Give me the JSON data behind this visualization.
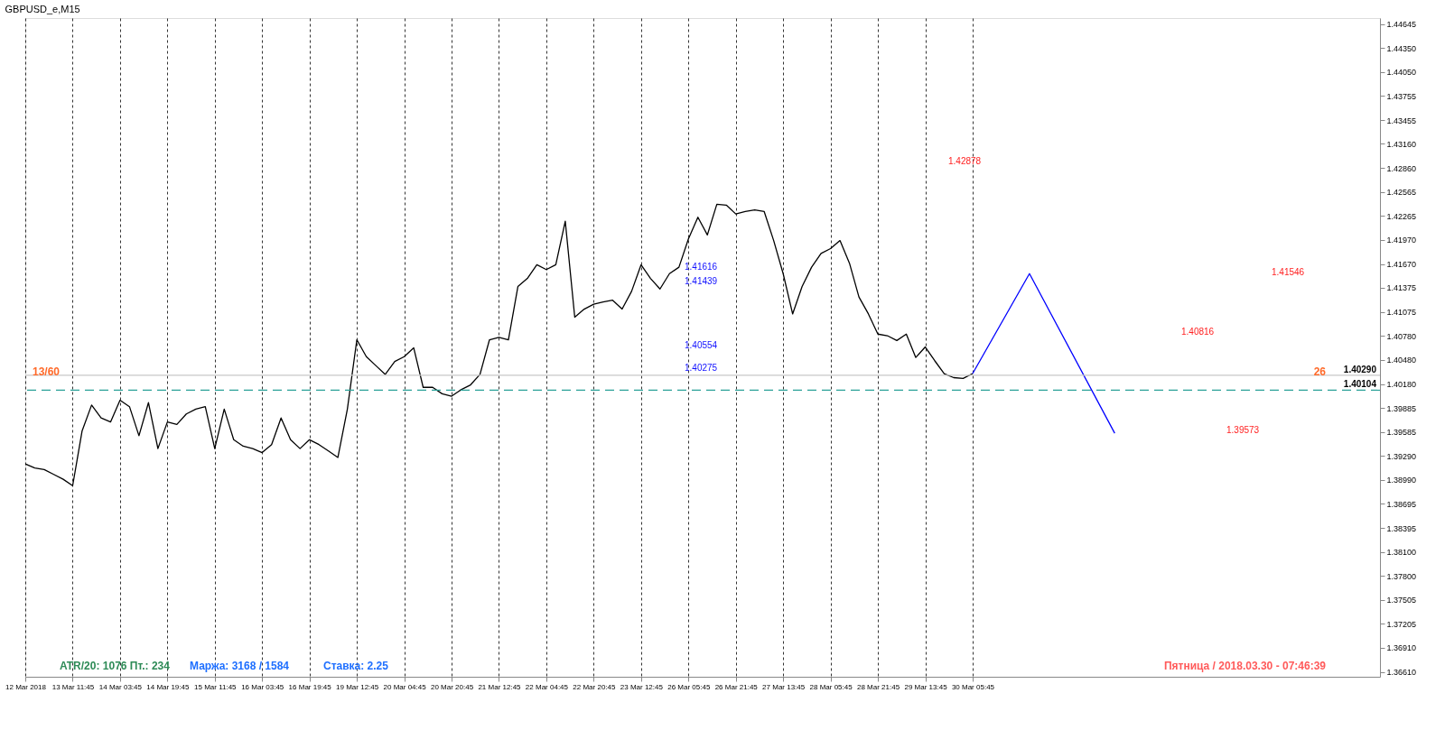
{
  "chart_data": {
    "type": "line",
    "title": "GBPUSD_e,M15",
    "categories": [
      "12 Mar 2018",
      null,
      null,
      null,
      null,
      "13 Mar 11:45",
      null,
      null,
      null,
      null,
      "14 Mar 03:45",
      null,
      null,
      null,
      null,
      "14 Mar 19:45",
      null,
      null,
      null,
      null,
      "15 Mar 11:45",
      null,
      null,
      null,
      null,
      "16 Mar 03:45",
      null,
      null,
      null,
      null,
      "16 Mar 19:45",
      null,
      null,
      null,
      null,
      "19 Mar 12:45",
      null,
      null,
      null,
      null,
      "20 Mar 04:45",
      null,
      null,
      null,
      null,
      "20 Mar 20:45",
      null,
      null,
      null,
      null,
      "21 Mar 12:45",
      null,
      null,
      null,
      null,
      "22 Mar 04:45",
      null,
      null,
      null,
      null,
      "22 Mar 20:45",
      null,
      null,
      null,
      null,
      "23 Mar 12:45",
      null,
      null,
      null,
      null,
      "26 Mar 05:45",
      null,
      null,
      null,
      null,
      "26 Mar 21:45",
      null,
      null,
      null,
      null,
      "27 Mar 13:45",
      null,
      null,
      null,
      null,
      "28 Mar 05:45",
      null,
      null,
      null,
      null,
      "28 Mar 21:45",
      null,
      null,
      null,
      null,
      "29 Mar 13:45",
      null,
      null,
      null,
      null,
      "30 Mar 05:45",
      null,
      null,
      null,
      null,
      null,
      null,
      null,
      null,
      null,
      null,
      null,
      null,
      null,
      null,
      null,
      null,
      null,
      null,
      null,
      null,
      null,
      null,
      null,
      null,
      null,
      null,
      null,
      null,
      null,
      null,
      null,
      null,
      null,
      null,
      null,
      null,
      null,
      null,
      null,
      null,
      null,
      null,
      null
    ],
    "series": [
      {
        "color": "#000000",
        "values": [
          1.3919,
          1.3914,
          1.3912,
          1.3906,
          1.39,
          1.3892,
          1.396,
          1.3992,
          1.3976,
          1.3971,
          1.3998,
          1.399,
          1.3954,
          1.3995,
          1.3938,
          1.3971,
          1.3968,
          1.3981,
          1.3987,
          1.399,
          1.3938,
          1.3987,
          1.3949,
          1.3941,
          1.3938,
          1.3933,
          1.3943,
          1.3976,
          1.3949,
          1.3938,
          1.3949,
          1.3943,
          1.3935,
          1.3927,
          1.3987,
          1.4073,
          1.4052,
          1.4041,
          1.403,
          1.4046,
          1.4052,
          1.4063,
          1.4014,
          1.4014,
          1.4006,
          1.4003,
          1.4011,
          1.4017,
          1.403,
          1.4073,
          1.4076,
          1.4073,
          1.4139,
          1.4149,
          1.4166,
          1.416,
          1.4166,
          1.422,
          1.4101,
          1.4111,
          1.4117,
          1.412,
          1.4122,
          1.4111,
          1.4133,
          1.4166,
          1.4149,
          1.4136,
          1.4155,
          1.4163,
          1.4198,
          1.4225,
          1.4203,
          1.4241,
          1.424,
          1.4229,
          1.4232,
          1.4234,
          1.4232,
          1.4196,
          1.4155,
          1.4105,
          1.4139,
          1.4163,
          1.418,
          1.4186,
          1.4196,
          1.4168,
          1.4126,
          1.4105,
          1.408,
          1.4078,
          1.4072,
          1.408,
          1.4051,
          1.4064,
          1.4047,
          1.4031,
          1.4026,
          1.4025,
          1.4031,
          null,
          null,
          null,
          null,
          null,
          null,
          null,
          null,
          null,
          null,
          null,
          null,
          null,
          null,
          null,
          null,
          null,
          null,
          null,
          null,
          null,
          null,
          null,
          null,
          null,
          null,
          null,
          null,
          null,
          null,
          null,
          null,
          null,
          null,
          null,
          null,
          null,
          null,
          null,
          null,
          null,
          null,
          null
        ]
      },
      {
        "color": "#0000ff",
        "values": [
          null,
          null,
          null,
          null,
          null,
          null,
          null,
          null,
          null,
          null,
          null,
          null,
          null,
          null,
          null,
          null,
          null,
          null,
          null,
          null,
          null,
          null,
          null,
          null,
          null,
          null,
          null,
          null,
          null,
          null,
          null,
          null,
          null,
          null,
          null,
          null,
          null,
          null,
          null,
          null,
          null,
          null,
          null,
          null,
          null,
          null,
          null,
          null,
          null,
          null,
          null,
          null,
          null,
          null,
          null,
          null,
          null,
          null,
          null,
          null,
          null,
          null,
          null,
          null,
          null,
          null,
          null,
          null,
          null,
          null,
          null,
          null,
          null,
          null,
          null,
          null,
          null,
          null,
          null,
          null,
          null,
          null,
          null,
          null,
          null,
          null,
          null,
          null,
          null,
          null,
          null,
          null,
          null,
          null,
          null,
          null,
          null,
          null,
          null,
          null,
          1.4031,
          null,
          null,
          null,
          null,
          null,
          1.4155,
          null,
          null,
          null,
          null,
          null,
          null,
          null,
          null,
          1.3957,
          null,
          null,
          null,
          null,
          null,
          null,
          null,
          null,
          null,
          null,
          null,
          null,
          null,
          null,
          null,
          null,
          null,
          null,
          null,
          null,
          null,
          null,
          null,
          null,
          null,
          null,
          null,
          null
        ]
      }
    ],
    "ylim": [
      1.3655,
      1.4472
    ],
    "yticks": [
      {
        "value": 1.3661,
        "label": "1.36610"
      },
      {
        "value": 1.3691,
        "label": "1.36910"
      },
      {
        "value": 1.37205,
        "label": "1.37205"
      },
      {
        "value": 1.37505,
        "label": "1.37505"
      },
      {
        "value": 1.378,
        "label": "1.37800"
      },
      {
        "value": 1.381,
        "label": "1.38100"
      },
      {
        "value": 1.38395,
        "label": "1.38395"
      },
      {
        "value": 1.38695,
        "label": "1.38695"
      },
      {
        "value": 1.3899,
        "label": "1.38990"
      },
      {
        "value": 1.3929,
        "label": "1.39290"
      },
      {
        "value": 1.39585,
        "label": "1.39585"
      },
      {
        "value": 1.39885,
        "label": "1.39885"
      },
      {
        "value": 1.4018,
        "label": "1.40180"
      },
      {
        "value": 1.4048,
        "label": "1.40480"
      },
      {
        "value": 1.4078,
        "label": "1.40780"
      },
      {
        "value": 1.41075,
        "label": "1.41075"
      },
      {
        "value": 1.41375,
        "label": "1.41375"
      },
      {
        "value": 1.4167,
        "label": "1.41670"
      },
      {
        "value": 1.4197,
        "label": "1.41970"
      },
      {
        "value": 1.42265,
        "label": "1.42265"
      },
      {
        "value": 1.42565,
        "label": "1.42565"
      },
      {
        "value": 1.4286,
        "label": "1.42860"
      },
      {
        "value": 1.4316,
        "label": "1.43160"
      },
      {
        "value": 1.43455,
        "label": "1.43455"
      },
      {
        "value": 1.43755,
        "label": "1.43755"
      },
      {
        "value": 1.4405,
        "label": "1.44050"
      },
      {
        "value": 1.4435,
        "label": "1.44350"
      },
      {
        "value": 1.44645,
        "label": "1.44645"
      }
    ],
    "grid": "x",
    "ref_lines": [
      {
        "axis": "y",
        "value": 1.4029,
        "label": "1.40290",
        "color": "#c8c8c8",
        "line_style": "solid"
      },
      {
        "axis": "y",
        "value": 1.40104,
        "label": "1.40104",
        "color": "#2aa198",
        "line_style": "dashed"
      }
    ],
    "annotations": [
      "13/60",
      "26",
      "ATR/20: 1076  Пт.: 234",
      "Маржа: 3168 / 1584",
      "Ставка: 2.25",
      "Пятница / 2018.03.30 - 07:46:39",
      "1.42878",
      "1.41546",
      "1.40816",
      "1.39573",
      "1.41616",
      "1.41439",
      "1.40554",
      "1.40275"
    ]
  }
}
